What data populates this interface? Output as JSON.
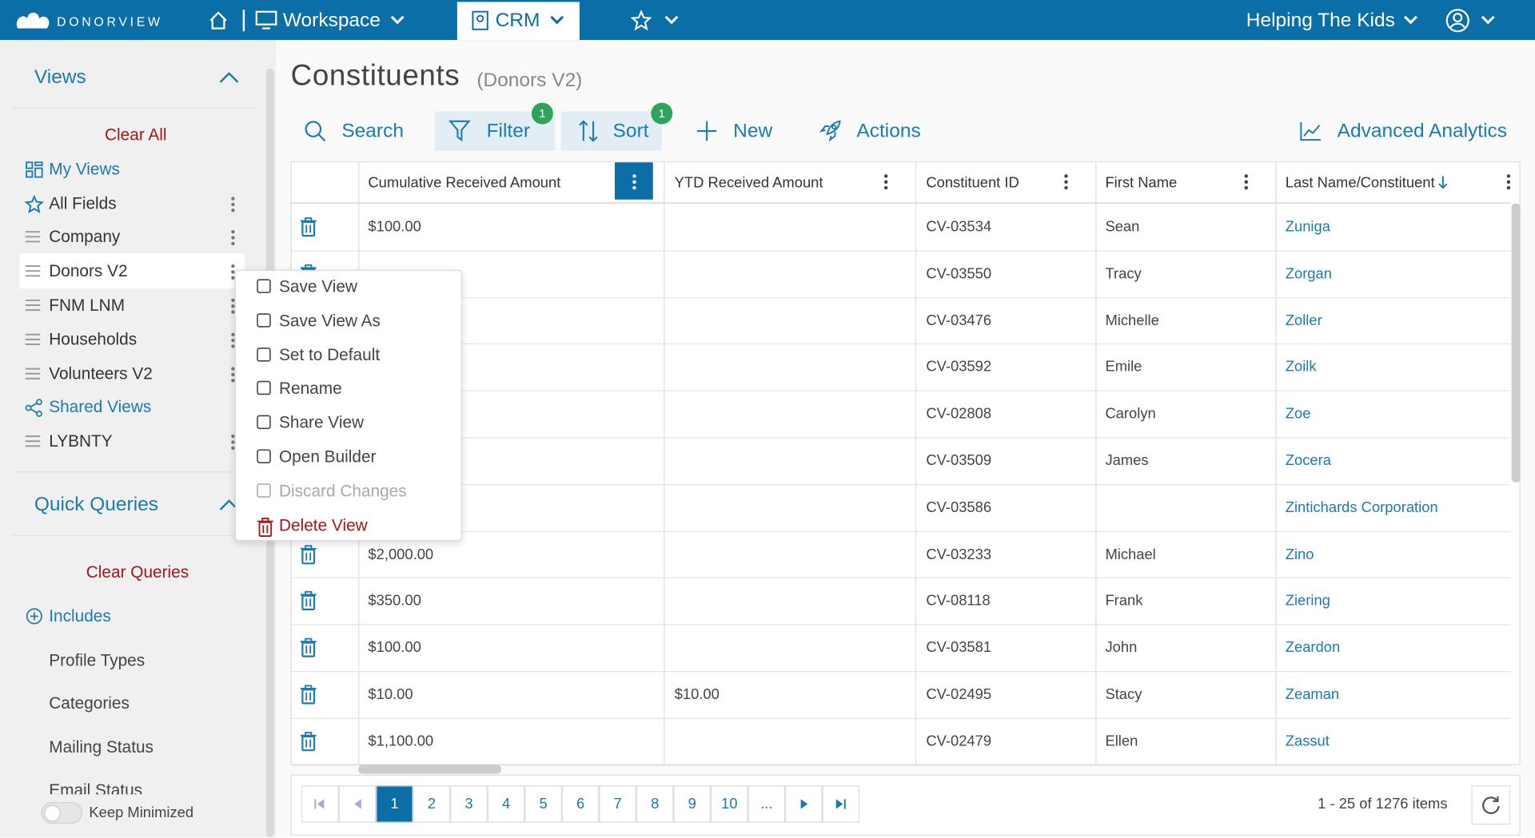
{
  "nav": {
    "logo": "DONORVIEW",
    "workspace": "Workspace",
    "crm": "CRM",
    "organization": "Helping The Kids"
  },
  "sidebar": {
    "views_title": "Views",
    "clear_all": "Clear All",
    "views": [
      {
        "label": "My Views",
        "icon": "grid",
        "kind": "link"
      },
      {
        "label": "All Fields",
        "icon": "star",
        "kind": "item"
      },
      {
        "label": "Company",
        "icon": "list",
        "kind": "item"
      },
      {
        "label": "Donors V2",
        "icon": "list",
        "kind": "item",
        "selected": true
      },
      {
        "label": "FNM LNM",
        "icon": "list",
        "kind": "item"
      },
      {
        "label": "Households",
        "icon": "list",
        "kind": "item"
      },
      {
        "label": "Volunteers V2",
        "icon": "list",
        "kind": "item"
      },
      {
        "label": "Shared Views",
        "icon": "share",
        "kind": "link"
      },
      {
        "label": "LYBNTY",
        "icon": "list",
        "kind": "item"
      }
    ],
    "quick_queries_title": "Quick Queries",
    "clear_queries": "Clear Queries",
    "includes": "Includes",
    "queries": [
      "Profile Types",
      "Categories",
      "Mailing Status",
      "Email Status"
    ],
    "keep_minimized": "Keep Minimized"
  },
  "context_menu": [
    {
      "label": "Save View"
    },
    {
      "label": "Save View As"
    },
    {
      "label": "Set to Default"
    },
    {
      "label": "Rename"
    },
    {
      "label": "Share View"
    },
    {
      "label": "Open Builder"
    },
    {
      "label": "Discard Changes",
      "state": "disabled"
    },
    {
      "label": "Delete View",
      "state": "danger"
    }
  ],
  "page": {
    "title": "Constituents",
    "subtitle": "(Donors V2)"
  },
  "toolbar": {
    "search": "Search",
    "filter": "Filter",
    "filter_badge": 1,
    "sort": "Sort",
    "sort_badge": 1,
    "new": "New",
    "actions": "Actions",
    "analytics": "Advanced Analytics"
  },
  "table": {
    "columns": [
      "Cumulative Received Amount",
      "YTD Received Amount",
      "Constituent ID",
      "First Name",
      "Last Name/Constituent"
    ],
    "rows": [
      {
        "amount": "$100.00",
        "id": "CV-03534",
        "first": "Sean",
        "last": "Zuniga"
      },
      {
        "id": "CV-03550",
        "first": "Tracy",
        "last": "Zorgan"
      },
      {
        "id": "CV-03476",
        "first": "Michelle",
        "last": "Zoller"
      },
      {
        "id": "CV-03592",
        "first": "Emile",
        "last": "Zoilk"
      },
      {
        "id": "CV-02808",
        "first": "Carolyn",
        "last": "Zoe"
      },
      {
        "id": "CV-03509",
        "first": "James",
        "last": "Zocera"
      },
      {
        "id": "CV-03586",
        "last": "Zintichards Corporation"
      },
      {
        "amount": "$2,000.00",
        "id": "CV-03233",
        "first": "Michael",
        "last": "Zino"
      },
      {
        "amount": "$350.00",
        "id": "CV-08118",
        "first": "Frank",
        "last": "Ziering"
      },
      {
        "amount": "$100.00",
        "id": "CV-03581",
        "first": "John",
        "last": "Zeardon"
      },
      {
        "amount": "$10.00",
        "ytd": "$10.00",
        "id": "CV-02495",
        "first": "Stacy",
        "last": "Zeaman"
      },
      {
        "amount": "$1,100.00",
        "id": "CV-02479",
        "first": "Ellen",
        "last": "Zassut"
      }
    ]
  },
  "pagination": {
    "pages": [
      1,
      2,
      3,
      4,
      5,
      6,
      7,
      8,
      9,
      10
    ],
    "ellipsis": "...",
    "summary": "1 - 25 of 1276 items"
  }
}
